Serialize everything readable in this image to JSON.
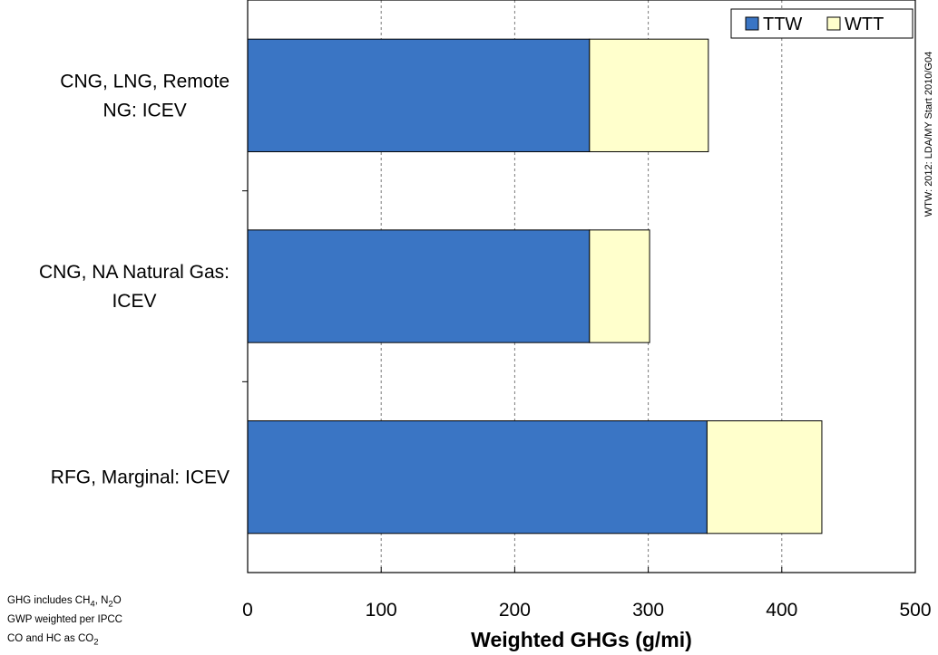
{
  "chart_data": {
    "type": "bar",
    "orientation": "horizontal",
    "stacked": true,
    "categories": [
      "CNG, LNG, Remote NG: ICEV",
      "CNG, NA Natural Gas: ICEV",
      "RFG, Marginal: ICEV"
    ],
    "category_lines": [
      [
        "CNG, LNG, Remote",
        "NG: ICEV"
      ],
      [
        "CNG, NA Natural Gas:",
        "ICEV"
      ],
      [
        "RFG, Marginal: ICEV"
      ]
    ],
    "series": [
      {
        "name": "TTW",
        "values": [
          256,
          256,
          344
        ],
        "color": "#3A75C4"
      },
      {
        "name": "WTT",
        "values": [
          89,
          45,
          86
        ],
        "color": "#FFFFCC"
      }
    ],
    "xlabel": "Weighted GHGs (g/mi)",
    "ylabel": "",
    "xlim": [
      0,
      500
    ],
    "xticks": [
      0,
      100,
      200,
      300,
      400,
      500
    ],
    "tick_labels": [
      "0",
      "100",
      "200",
      "300",
      "400",
      "500"
    ],
    "grid": "vertical dashed",
    "legend_position": "top-right",
    "side_note": "WTW: 2012: LDA/MY Start 2010/G04"
  },
  "notes": {
    "line1_a": "GHG includes CH",
    "line1_sub1": "4",
    "line1_b": ", N",
    "line1_sub2": "2",
    "line1_c": "O",
    "line2": "GWP weighted per IPCC",
    "line3_a": "CO and HC as CO",
    "line3_sub": "2"
  }
}
